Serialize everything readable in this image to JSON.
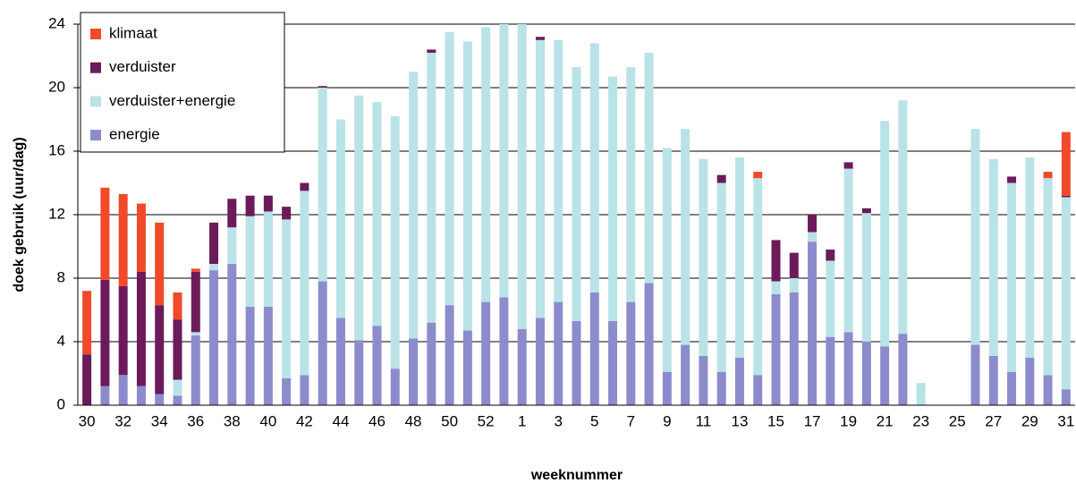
{
  "chart_data": {
    "type": "stacked_bar",
    "x_label": "weeknummer",
    "y_label": "doek gebruik (uur/dag)",
    "categories": [
      "30",
      null,
      "32",
      null,
      "34",
      null,
      "36",
      null,
      "38",
      null,
      "40",
      null,
      "42",
      null,
      "44",
      null,
      "46",
      null,
      "48",
      null,
      "50",
      null,
      "52",
      null,
      "1",
      null,
      "3",
      null,
      "5",
      null,
      "7",
      null,
      "9",
      null,
      "11",
      null,
      "13",
      null,
      "15",
      null,
      "17",
      null,
      "19",
      null,
      "21",
      null,
      "23",
      null,
      "25",
      null,
      "27",
      null,
      "29",
      null,
      "31"
    ],
    "ylim": [
      0,
      24
    ],
    "yticks": [
      0,
      4,
      8,
      12,
      16,
      20,
      24
    ],
    "grid": true,
    "legend": "upper left",
    "series": [
      {
        "name": "energie",
        "color": "#8c8ccc",
        "values": [
          0,
          1.2,
          1.9,
          1.2,
          0.7,
          0.6,
          4.4,
          8.5,
          8.9,
          6.2,
          6.2,
          1.7,
          1.9,
          7.8,
          5.5,
          4.1,
          5.0,
          2.3,
          4.2,
          5.2,
          6.3,
          4.7,
          6.5,
          6.8,
          4.8,
          5.5,
          6.5,
          5.3,
          7.1,
          5.3,
          6.5,
          7.7,
          2.1,
          3.8,
          3.1,
          2.1,
          3.0,
          1.9,
          7.0,
          7.1,
          10.3,
          4.3,
          4.6,
          4.0,
          3.7,
          4.5,
          0,
          0,
          0,
          3.8,
          3.1,
          2.1,
          3.0,
          1.9,
          1.0
        ]
      },
      {
        "name": "verduister+energie",
        "color": "#b9e3e6",
        "values": [
          0,
          0,
          0,
          0,
          0,
          1.0,
          0.2,
          0.4,
          2.3,
          5.7,
          6.0,
          10.0,
          11.6,
          12.2,
          12.5,
          15.4,
          14.1,
          15.9,
          16.8,
          17.0,
          17.2,
          18.2,
          17.3,
          17.2,
          19.2,
          17.5,
          16.5,
          16.0,
          15.7,
          15.4,
          14.8,
          14.5,
          14.1,
          13.6,
          12.4,
          11.9,
          12.6,
          12.4,
          0.8,
          0.9,
          0.6,
          4.8,
          10.3,
          8.1,
          14.2,
          14.7,
          1.4,
          0,
          0,
          13.6,
          12.4,
          11.9,
          12.6,
          12.4,
          12.1
        ]
      },
      {
        "name": "verduister",
        "color": "#6b1a5a",
        "values": [
          3.2,
          6.7,
          5.6,
          7.2,
          5.6,
          3.8,
          3.8,
          2.6,
          1.8,
          1.3,
          1.0,
          0.8,
          0.5,
          0.1,
          0,
          0,
          0,
          0,
          0,
          0.2,
          0,
          0,
          0,
          0,
          0,
          0.2,
          0,
          0,
          0,
          0,
          0,
          0,
          0,
          0,
          0,
          0.5,
          0,
          0,
          2.6,
          1.6,
          1.1,
          0.7,
          0.4,
          0.3,
          0,
          0,
          0,
          0,
          0,
          0,
          0,
          0.4,
          0,
          0,
          0.1
        ]
      },
      {
        "name": "klimaat",
        "color": "#f04a2a",
        "values": [
          4.0,
          5.8,
          5.8,
          4.3,
          5.2,
          1.7,
          0.2,
          0,
          0,
          0,
          0,
          0,
          0,
          0,
          0,
          0,
          0,
          0,
          0,
          0,
          0,
          0,
          0,
          0,
          0,
          0,
          0,
          0,
          0,
          0,
          0,
          0,
          0,
          0,
          0,
          0,
          0,
          0.4,
          0,
          0,
          0,
          0,
          0,
          0,
          0,
          0,
          0,
          0,
          0,
          0,
          0,
          0,
          0,
          0.4,
          4.0
        ]
      }
    ]
  }
}
